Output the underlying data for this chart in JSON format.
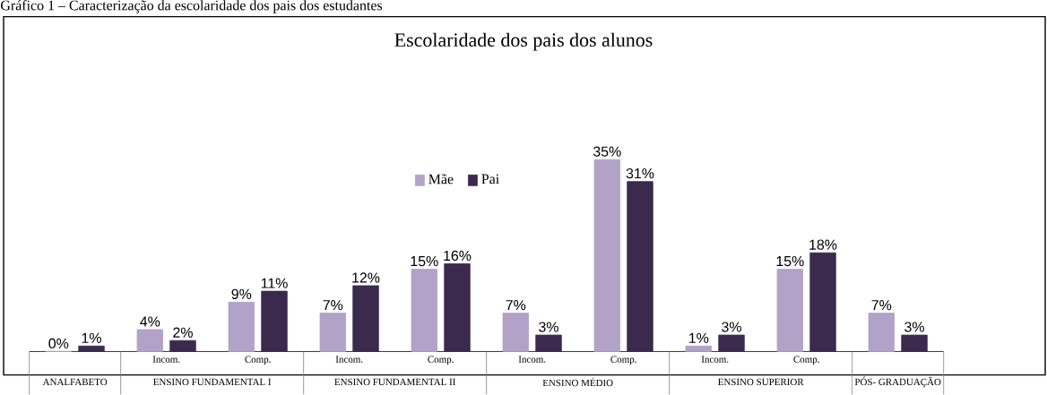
{
  "chart_data": {
    "type": "bar",
    "title": "Escolaridade dos pais dos alunos",
    "categories": [
      null,
      "Incom.",
      "Comp.",
      "Incom.",
      "Comp.",
      "Incom.",
      "Comp.",
      "Incom.",
      "Comp.",
      null
    ],
    "series": [
      {
        "name": "Mãe",
        "color": "#b3a2c7",
        "values": [
          0,
          4,
          9,
          7,
          15,
          7,
          35,
          1,
          15,
          7
        ],
        "value_labels": [
          "0%",
          "4%",
          "9%",
          "7%",
          "15%",
          "7%",
          "35%",
          "1%",
          "15%",
          "7%"
        ]
      },
      {
        "name": "Pai",
        "color": "#3b2a4e",
        "values": [
          1,
          2,
          11,
          12,
          16,
          3,
          31,
          3,
          18,
          3
        ],
        "value_labels": [
          "1%",
          "2%",
          "11%",
          "12%",
          "16%",
          "3%",
          "31%",
          "3%",
          "18%",
          "3%"
        ]
      }
    ],
    "legend": "top",
    "annotations": [
      "Gráfico 1 – Caracterização da escolaridade dos pais dos estudantes",
      "ANALFABETO",
      "ENSINO FUNDAMENTAL I",
      "ENSINO FUNDAMENTAL II",
      "ENSINO MÉDIO",
      "ENSINO SUPERIOR",
      "PÓS- GRADUAÇÃO"
    ]
  }
}
